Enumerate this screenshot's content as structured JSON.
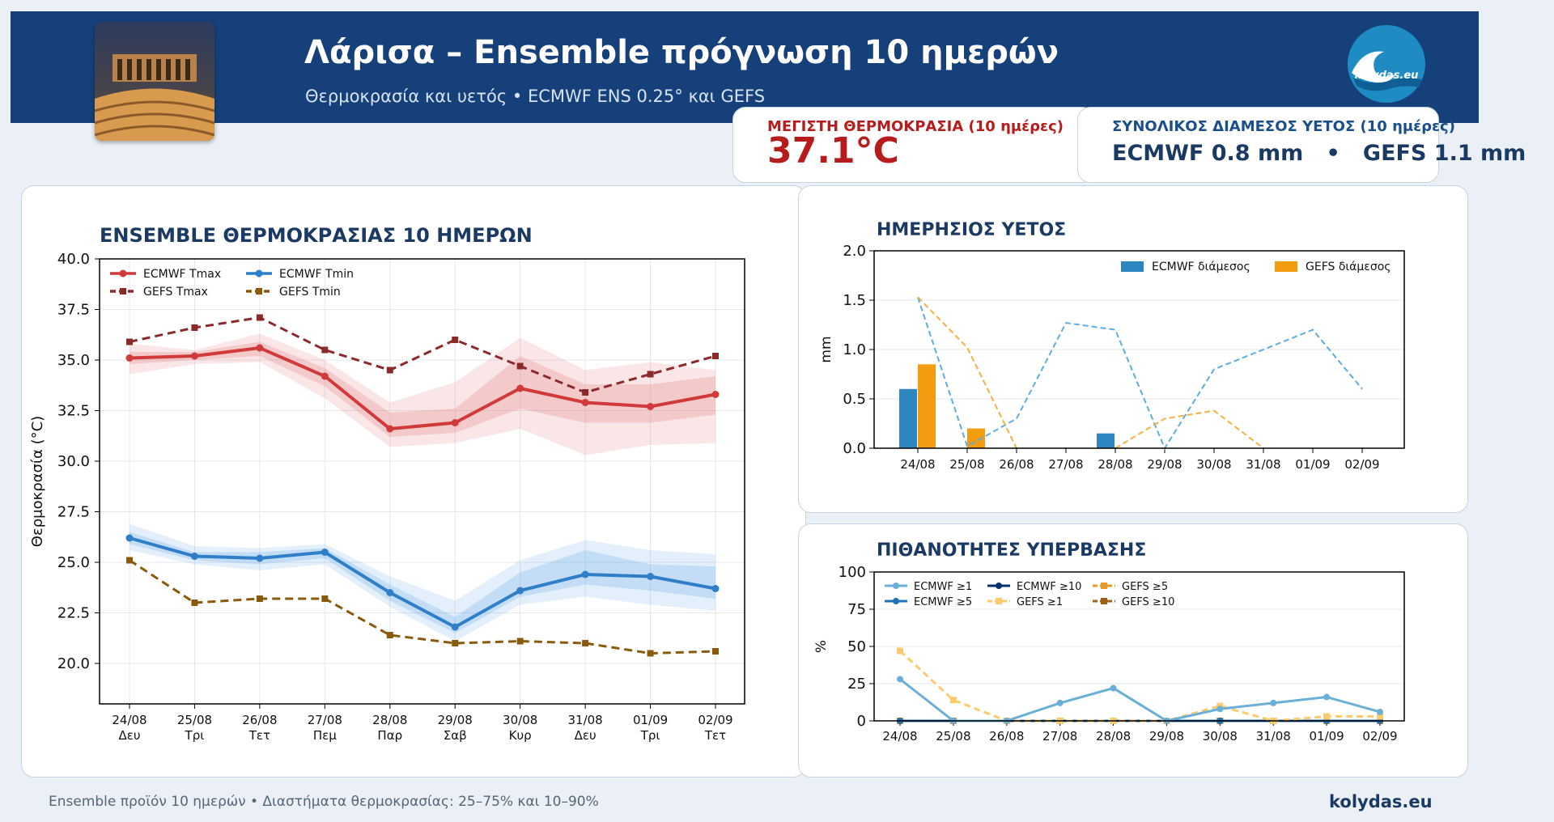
{
  "header": {
    "title": "Λάρισα – Ensemble πρόγνωση 10 ημερών",
    "subtitle": "Θερμοκρασία και υετός • ECMWF ENS 0.25° και GEFS",
    "logo_text": "kolydas.eu"
  },
  "kpis": {
    "max_temp_label": "ΜΕΓΙΣΤΗ ΘΕΡΜΟΚΡΑΣΙΑ (10 ημέρες)",
    "max_temp_value": "37.1°C",
    "rain_label": "ΣΥΝΟΛΙΚΟΣ ΔΙΑΜΕΣΟΣ ΥΕΤΟΣ (10 ημέρες)",
    "rain_value": "ECMWF 0.8 mm   •   GEFS 1.1 mm"
  },
  "footer": {
    "note": "Ensemble προϊόν 10 ημερών • Διαστήματα θερμοκρασίας: 25–75% και 10–90%",
    "brand": "kolydas.eu"
  },
  "colors": {
    "header_bg": "#15407a",
    "ecmwf_tmax": "#d13a3a",
    "gefs_tmax": "#8b2a2a",
    "ecmwf_tmin": "#2f7fc8",
    "gefs_tmin": "#8a5a0c",
    "ecmwf_rain": "#2e86c1",
    "gefs_rain": "#f39c12",
    "kpi_red": "#b71c1c"
  },
  "chart_data": [
    {
      "type": "line",
      "title": "ENSEMBLE ΘΕΡΜΟΚΡΑΣΙΑΣ 10 ΗΜΕΡΩΝ",
      "xlabel": "",
      "ylabel": "Θερμοκρασία (°C)",
      "categories": [
        "24/08",
        "25/08",
        "26/08",
        "27/08",
        "28/08",
        "29/08",
        "30/08",
        "31/08",
        "01/09",
        "02/09"
      ],
      "day_labels": [
        "Δευ",
        "Τρι",
        "Τετ",
        "Πεμ",
        "Παρ",
        "Σαβ",
        "Κυρ",
        "Δευ",
        "Τρι",
        "Τετ"
      ],
      "ylim": [
        18,
        40
      ],
      "yticks": [
        "20.0",
        "22.5",
        "25.0",
        "27.5",
        "30.0",
        "32.5",
        "35.0",
        "37.5",
        "40.0"
      ],
      "grid": true,
      "legend_position": "top-left",
      "series": [
        {
          "name": "ECMWF Tmax",
          "style": "solid",
          "values": [
            35.1,
            35.2,
            35.6,
            34.2,
            31.6,
            31.9,
            33.6,
            32.9,
            32.7,
            33.3
          ]
        },
        {
          "name": "GEFS Tmax",
          "style": "dashed",
          "values": [
            35.9,
            36.6,
            37.1,
            35.5,
            34.5,
            36.0,
            34.7,
            33.4,
            34.3,
            35.2
          ]
        },
        {
          "name": "ECMWF Tmin",
          "style": "solid",
          "values": [
            26.2,
            25.3,
            25.2,
            25.5,
            23.5,
            21.8,
            23.6,
            24.4,
            24.3,
            23.7
          ]
        },
        {
          "name": "GEFS Tmin",
          "style": "dashed",
          "values": [
            25.1,
            23.0,
            23.2,
            23.2,
            21.4,
            21.0,
            21.1,
            21.0,
            20.5,
            20.6
          ]
        }
      ],
      "bands": [
        {
          "series": "ECMWF Tmax",
          "range": "10-90",
          "low": [
            34.3,
            34.8,
            34.9,
            33.1,
            30.7,
            30.9,
            31.6,
            30.3,
            30.8,
            30.9
          ],
          "high": [
            35.8,
            35.5,
            36.3,
            35.0,
            32.9,
            33.9,
            36.1,
            34.5,
            34.9,
            34.5
          ]
        },
        {
          "series": "ECMWF Tmax",
          "range": "25-75",
          "low": [
            34.8,
            35.0,
            35.2,
            33.7,
            31.2,
            31.4,
            32.6,
            31.9,
            31.9,
            32.3
          ],
          "high": [
            35.4,
            35.4,
            35.9,
            34.6,
            32.4,
            32.6,
            35.2,
            33.8,
            33.8,
            34.2
          ]
        },
        {
          "series": "ECMWF Tmin",
          "range": "10-90",
          "low": [
            25.6,
            24.9,
            24.6,
            24.9,
            22.8,
            21.1,
            22.9,
            23.3,
            22.9,
            22.6
          ],
          "high": [
            26.9,
            25.8,
            25.7,
            25.9,
            24.3,
            23.1,
            25.1,
            26.1,
            25.6,
            25.4
          ]
        },
        {
          "series": "ECMWF Tmin",
          "range": "25-75",
          "low": [
            25.9,
            25.1,
            24.9,
            25.2,
            23.1,
            21.5,
            23.3,
            23.9,
            23.6,
            23.2
          ],
          "high": [
            26.5,
            25.5,
            25.5,
            25.7,
            23.9,
            22.3,
            24.5,
            25.6,
            24.9,
            24.8
          ]
        }
      ]
    },
    {
      "type": "bar",
      "title": "ΗΜΕΡΗΣΙΟΣ ΥΕΤΟΣ",
      "xlabel": "",
      "ylabel": "mm",
      "categories": [
        "24/08",
        "25/08",
        "26/08",
        "27/08",
        "28/08",
        "29/08",
        "30/08",
        "31/08",
        "01/09",
        "02/09"
      ],
      "ylim": [
        0,
        2
      ],
      "yticks": [
        "0.0",
        "0.5",
        "1.0",
        "1.5",
        "2.0"
      ],
      "grid": true,
      "legend_position": "top-right",
      "series": [
        {
          "name": "ECMWF διάμεσος",
          "values": [
            0.6,
            0,
            0,
            0,
            0.15,
            0,
            0,
            0,
            0,
            0
          ]
        },
        {
          "name": "GEFS διάμεσος",
          "values": [
            0.85,
            0.2,
            0,
            0,
            0,
            0,
            0,
            0,
            0,
            0
          ]
        }
      ],
      "upper_lines": [
        {
          "color": "#5dade2",
          "values": [
            1.53,
            0.02,
            0.3,
            1.27,
            1.2,
            0.0,
            0.8,
            1.0,
            1.2,
            0.6
          ]
        },
        {
          "color": "#f5b041",
          "values": [
            1.53,
            1.02,
            0.0,
            null,
            0.0,
            0.3,
            0.38,
            0.0,
            null,
            null
          ]
        }
      ]
    },
    {
      "type": "line",
      "title": "ΠΙΘΑΝΟΤΗΤΕΣ ΥΠΕΡΒΑΣΗΣ",
      "xlabel": "",
      "ylabel": "%",
      "categories": [
        "24/08",
        "25/08",
        "26/08",
        "27/08",
        "28/08",
        "29/08",
        "30/08",
        "31/08",
        "01/09",
        "02/09"
      ],
      "ylim": [
        0,
        100
      ],
      "yticks": [
        "0",
        "25",
        "50",
        "75",
        "100"
      ],
      "grid": true,
      "legend_position": "top-left",
      "series": [
        {
          "name": "ECMWF ≥1",
          "style": "solid",
          "color": "#6baed6",
          "marker": "circle",
          "values": [
            28,
            0,
            0,
            12,
            22,
            0,
            8,
            12,
            16,
            6
          ]
        },
        {
          "name": "ECMWF ≥5",
          "style": "solid",
          "color": "#2171b5",
          "marker": "circle",
          "values": [
            0,
            0,
            0,
            0,
            0,
            0,
            0,
            0,
            0,
            0
          ]
        },
        {
          "name": "ECMWF ≥10",
          "style": "solid",
          "color": "#08306b",
          "marker": "circle",
          "values": [
            0,
            0,
            0,
            0,
            0,
            0,
            0,
            0,
            0,
            0
          ]
        },
        {
          "name": "GEFS ≥1",
          "style": "dashed",
          "color": "#fdcb6e",
          "marker": "square",
          "values": [
            47,
            14,
            0,
            0,
            0,
            0,
            10,
            0,
            3,
            3
          ]
        },
        {
          "name": "GEFS ≥5",
          "style": "dashed",
          "color": "#e69a28",
          "marker": "square",
          "values": [
            0,
            0,
            0,
            0,
            0,
            0,
            0,
            0,
            0,
            0
          ]
        },
        {
          "name": "GEFS ≥10",
          "style": "dashed",
          "color": "#a0601a",
          "marker": "square",
          "values": [
            0,
            0,
            0,
            0,
            0,
            0,
            0,
            0,
            0,
            0
          ]
        }
      ]
    }
  ]
}
